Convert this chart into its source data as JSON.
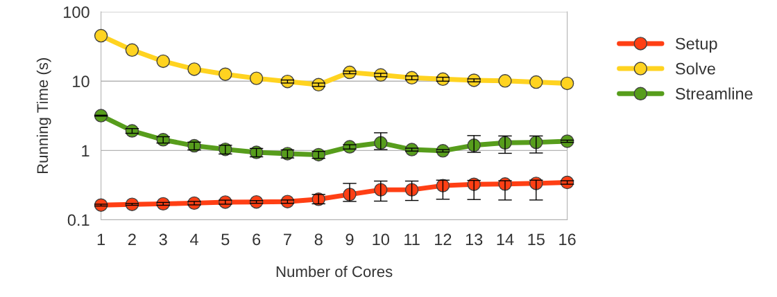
{
  "chart_data": {
    "type": "line",
    "xlabel": "Number of Cores",
    "ylabel": "Running Time (s)",
    "x": [
      1,
      2,
      3,
      4,
      5,
      6,
      7,
      8,
      9,
      10,
      11,
      12,
      13,
      14,
      15,
      16
    ],
    "xlim": [
      1,
      16
    ],
    "xticks": [
      1,
      2,
      3,
      4,
      5,
      6,
      7,
      8,
      9,
      10,
      11,
      12,
      13,
      14,
      15,
      16
    ],
    "log": "y",
    "ylim": [
      0.1,
      100
    ],
    "yticks": [
      0.1,
      1,
      10,
      100
    ],
    "grid": "y",
    "legend": "right",
    "marker": "circle",
    "line_style": "solid",
    "series": [
      {
        "name": "Setup",
        "color": "#ff3f14",
        "values": [
          0.163,
          0.167,
          0.17,
          0.174,
          0.18,
          0.181,
          0.183,
          0.198,
          0.232,
          0.271,
          0.271,
          0.311,
          0.325,
          0.328,
          0.335,
          0.346
        ],
        "errors": [
          0.005,
          0.005,
          0.008,
          0.01,
          0.012,
          0.008,
          0.01,
          [
            0.17,
            0.232
          ],
          [
            0.184,
            0.335
          ],
          [
            0.186,
            0.362
          ],
          [
            0.19,
            0.362
          ],
          [
            0.198,
            0.373
          ],
          [
            0.196,
            0.37
          ],
          [
            0.193,
            0.366
          ],
          [
            0.193,
            0.373
          ],
          0.02
        ]
      },
      {
        "name": "Solve",
        "color": "#ffd320",
        "values": [
          45.3,
          28.1,
          19.4,
          14.9,
          12.6,
          11.0,
          9.9,
          8.9,
          13.4,
          12.3,
          11.2,
          10.7,
          10.3,
          10.1,
          9.7,
          9.3
        ],
        "errors": [
          null,
          null,
          null,
          null,
          null,
          null,
          0.5,
          0.5,
          0.6,
          0.7,
          0.7,
          0.7,
          0.5,
          null,
          null,
          null
        ]
      },
      {
        "name": "Streamline",
        "color": "#579d1c",
        "values": [
          3.18,
          1.92,
          1.43,
          1.17,
          1.04,
          0.94,
          0.9,
          0.87,
          1.13,
          1.29,
          1.03,
          0.99,
          1.19,
          1.29,
          1.31,
          1.36
        ],
        "errors": [
          0.05,
          0.15,
          0.15,
          0.15,
          0.15,
          0.13,
          0.12,
          0.1,
          0.08,
          [
            1.03,
            1.8
          ],
          0.05,
          0.04,
          [
            0.94,
            1.64
          ],
          [
            0.91,
            1.62
          ],
          [
            0.92,
            1.62
          ],
          0.05
        ]
      }
    ]
  }
}
